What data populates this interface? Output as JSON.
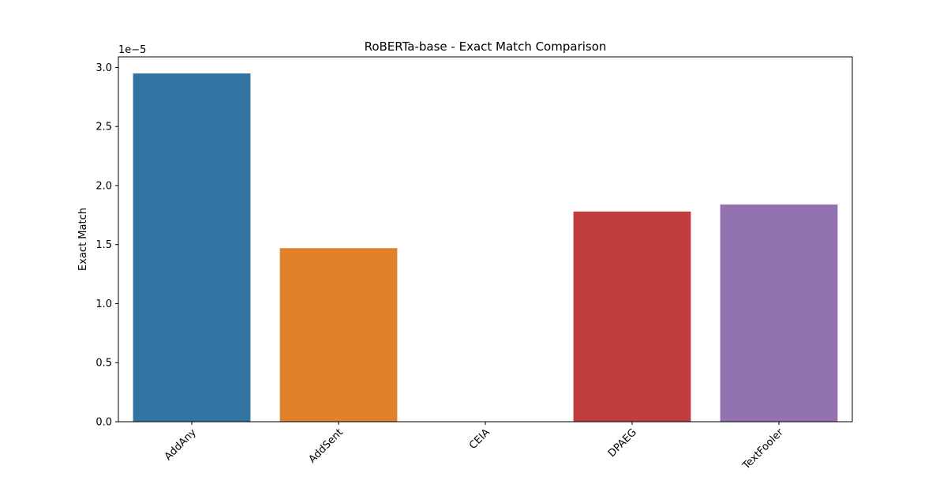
{
  "chart_data": {
    "type": "bar",
    "title": "RoBERTa-base - Exact Match Comparison",
    "xlabel": "",
    "ylabel": "Exact Match",
    "offset_label": "1e−5",
    "categories": [
      "AddAny",
      "AddSent",
      "CEIA",
      "DPAEG",
      "TextFooler"
    ],
    "values": [
      2.95,
      1.47,
      0.0,
      1.78,
      1.84
    ],
    "colors": [
      "#3274a1",
      "#e1812c",
      "#3a923a",
      "#c03d3e",
      "#9372b2"
    ],
    "ylim": [
      0,
      3.09
    ],
    "yticks": [
      0.0,
      0.5,
      1.0,
      1.5,
      2.0,
      2.5,
      3.0
    ],
    "ytick_labels": [
      "0.0",
      "0.5",
      "1.0",
      "1.5",
      "2.0",
      "2.5",
      "3.0"
    ],
    "grid": false,
    "legend": "none"
  }
}
